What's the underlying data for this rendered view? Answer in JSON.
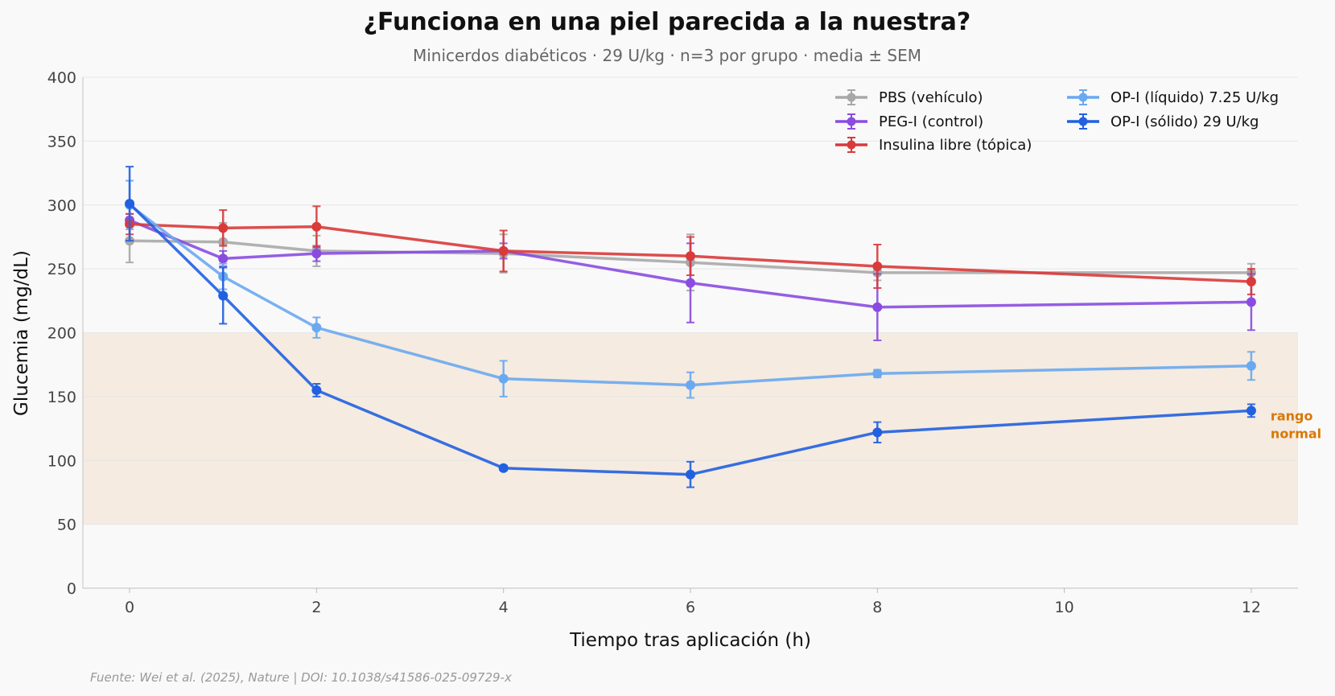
{
  "chart_data": {
    "type": "line",
    "title": "¿Funciona en una piel parecida a la nuestra?",
    "subtitle": "Minicerdos diabéticos · 29 U/kg · n=3 por grupo · media ± SEM",
    "xlabel": "Tiempo tras aplicación (h)",
    "ylabel": "Glucemia (mg/dL)",
    "xlim": [
      -0.5,
      12.5
    ],
    "ylim": [
      0,
      400
    ],
    "xticks": [
      0,
      2,
      4,
      6,
      8,
      10,
      12
    ],
    "yticks": [
      0,
      50,
      100,
      150,
      200,
      250,
      300,
      350,
      400
    ],
    "grid": "horizontal",
    "band": {
      "y0": 50,
      "y1": 200,
      "label_line1": "rango",
      "label_line2": "normal",
      "color": "#f5ebe0"
    },
    "source": "Fuente: Wei et al. (2025), Nature | DOI: 10.1038/s41586-025-09729-x",
    "series": [
      {
        "name": "PBS (vehículo)",
        "color": "#a8a8a8",
        "x": [
          0,
          1,
          2,
          4,
          6,
          8,
          12
        ],
        "y": [
          272,
          271,
          264,
          262,
          255,
          247,
          247
        ],
        "err": [
          17,
          15,
          12,
          15,
          22,
          6,
          7
        ]
      },
      {
        "name": "PEG-I (control)",
        "color": "#8a4ce0",
        "x": [
          0,
          1,
          2,
          4,
          6,
          8,
          12
        ],
        "y": [
          288,
          258,
          262,
          264,
          239,
          220,
          224
        ],
        "err": [
          5,
          6,
          6,
          6,
          31,
          26,
          22
        ]
      },
      {
        "name": "Insulina libre (tópica)",
        "color": "#d93a3a",
        "x": [
          0,
          1,
          2,
          4,
          6,
          8,
          12
        ],
        "y": [
          285,
          282,
          283,
          264,
          260,
          252,
          240
        ],
        "err": [
          8,
          14,
          16,
          16,
          15,
          17,
          10
        ]
      },
      {
        "name": "OP-I (líquido) 7.25 U/kg",
        "color": "#6aa9f0",
        "x": [
          0,
          1,
          2,
          4,
          6,
          8,
          12
        ],
        "y": [
          300,
          244,
          204,
          164,
          159,
          168,
          174
        ],
        "err": [
          19,
          10,
          8,
          14,
          10,
          3,
          11
        ]
      },
      {
        "name": "OP-I (sólido) 29 U/kg",
        "color": "#2160e0",
        "x": [
          0,
          1,
          2,
          4,
          6,
          8,
          12
        ],
        "y": [
          301,
          229,
          155,
          94,
          89,
          122,
          139
        ],
        "err": [
          29,
          22,
          5,
          2,
          10,
          8,
          5
        ]
      }
    ]
  }
}
